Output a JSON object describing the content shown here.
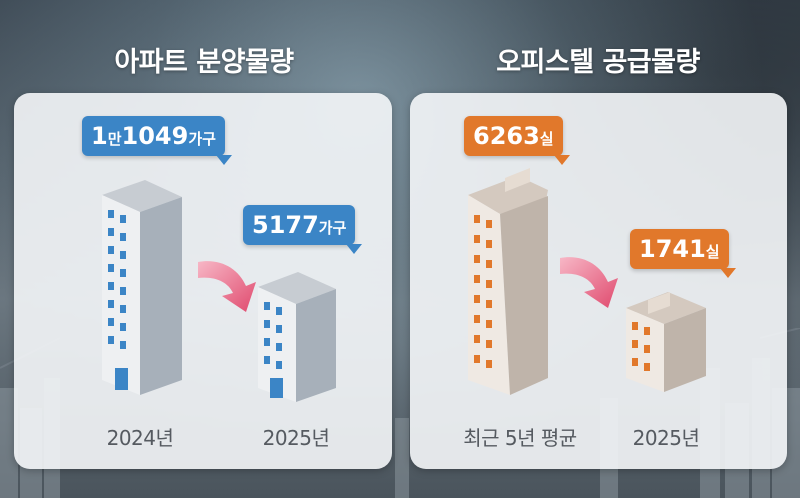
{
  "apartment": {
    "title": "아파트 분양물량",
    "bar_2024": {
      "label": "2024년",
      "value_big1": "1",
      "value_mid": "만",
      "value_big2": "1049",
      "unit": "가구"
    },
    "bar_2025": {
      "label": "2025년",
      "value": "5177",
      "unit": "가구"
    }
  },
  "officetel": {
    "title": "오피스텔 공급물량",
    "bar_avg": {
      "label": "최근 5년 평균",
      "value": "6263",
      "unit": "실"
    },
    "bar_2025": {
      "label": "2025년",
      "value": "1741",
      "unit": "실"
    }
  },
  "colors": {
    "apartment_accent": "#3b85c6",
    "officetel_accent": "#e1782b",
    "arrow": "#e04a6e"
  },
  "chart_data": [
    {
      "type": "bar",
      "title": "아파트 분양물량",
      "categories": [
        "2024년",
        "2025년"
      ],
      "values": [
        11049,
        5177
      ],
      "unit": "가구"
    },
    {
      "type": "bar",
      "title": "오피스텔 공급물량",
      "categories": [
        "최근 5년 평균",
        "2025년"
      ],
      "values": [
        6263,
        1741
      ],
      "unit": "실"
    }
  ]
}
